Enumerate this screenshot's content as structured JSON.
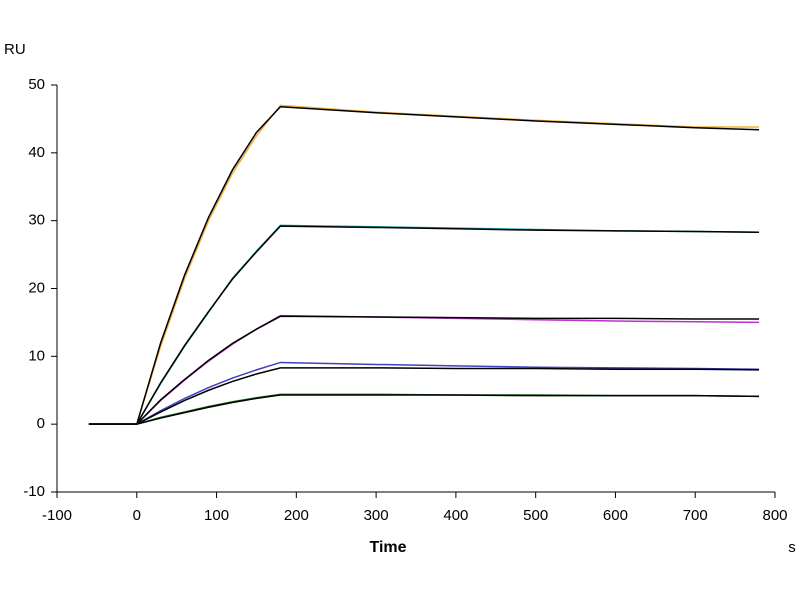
{
  "chart_data": {
    "type": "line",
    "y_label": "RU",
    "x_label": "Time",
    "x_unit": "s",
    "x": [
      -60,
      0,
      30,
      60,
      90,
      120,
      150,
      180,
      300,
      400,
      500,
      600,
      700,
      780
    ],
    "series": [
      {
        "color": "#f0b040",
        "values": [
          0,
          0,
          11.5,
          21.5,
          30,
          37,
          42.5,
          47,
          46,
          45.4,
          44.8,
          44.3,
          43.8,
          43.8
        ]
      },
      {
        "color": "#000000",
        "values": [
          0,
          0,
          12,
          22,
          30.5,
          37.5,
          43,
          46.8,
          45.9,
          45.3,
          44.7,
          44.2,
          43.7,
          43.4
        ]
      },
      {
        "color": "#1a9fa8",
        "values": [
          0,
          0,
          6,
          11.5,
          16.5,
          21.5,
          25.5,
          29.3,
          29.1,
          28.9,
          28.7,
          28.5,
          28.4,
          28.3
        ]
      },
      {
        "color": "#000000",
        "values": [
          0,
          0,
          6.1,
          11.6,
          16.6,
          21.4,
          25.4,
          29.2,
          29,
          28.8,
          28.6,
          28.5,
          28.4,
          28.3
        ]
      },
      {
        "color": "#c030d0",
        "values": [
          0,
          0,
          3.5,
          6.5,
          9.3,
          11.8,
          14,
          16,
          15.8,
          15.6,
          15.4,
          15.2,
          15.1,
          15
        ]
      },
      {
        "color": "#000000",
        "values": [
          0,
          0,
          3.6,
          6.6,
          9.4,
          11.9,
          14,
          15.9,
          15.8,
          15.7,
          15.6,
          15.6,
          15.5,
          15.5
        ]
      },
      {
        "color": "#4040c0",
        "values": [
          0,
          0,
          2,
          3.8,
          5.4,
          6.8,
          8,
          9.1,
          8.8,
          8.6,
          8.4,
          8.3,
          8.2,
          8.1
        ]
      },
      {
        "color": "#000000",
        "values": [
          0,
          0,
          1.8,
          3.5,
          5,
          6.3,
          7.4,
          8.3,
          8.3,
          8.2,
          8.2,
          8.1,
          8.1,
          8
        ]
      },
      {
        "color": "#1a6a1a",
        "values": [
          0,
          0,
          1,
          1.8,
          2.6,
          3.3,
          3.9,
          4.4,
          4.4,
          4.3,
          4.3,
          4.2,
          4.2,
          4.1
        ]
      },
      {
        "color": "#000000",
        "values": [
          0,
          0,
          0.9,
          1.7,
          2.5,
          3.2,
          3.8,
          4.3,
          4.3,
          4.3,
          4.2,
          4.2,
          4.2,
          4.1
        ]
      }
    ],
    "xlim": [
      -100,
      800
    ],
    "xticks": [
      -100,
      0,
      100,
      200,
      300,
      400,
      500,
      600,
      700,
      800
    ],
    "ylim": [
      -10,
      50
    ],
    "yticks": [
      -10,
      0,
      10,
      20,
      30,
      40,
      50
    ]
  }
}
